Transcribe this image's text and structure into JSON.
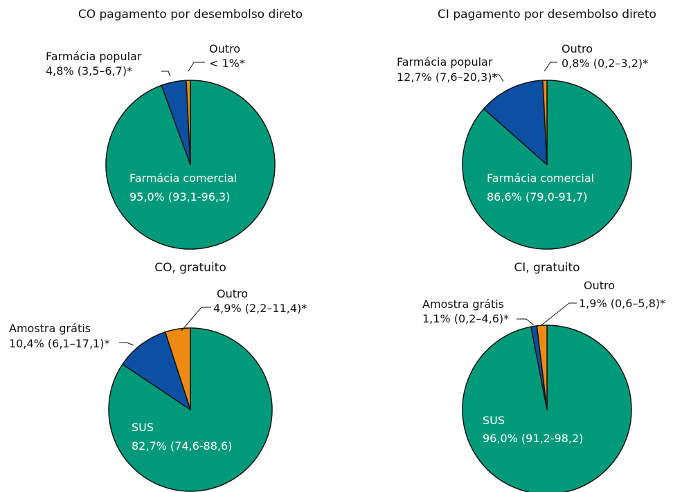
{
  "colors": {
    "teal": "#009a7a",
    "blue": "#0c4fa3",
    "orange": "#ee8a12",
    "stroke": "#111111"
  },
  "chart_data": [
    {
      "type": "pie",
      "title": "CO pagamento por desembolso direto",
      "slices": [
        {
          "name": "Farmácia comercial",
          "value": 95.0,
          "label": "95,0% (93,1-96,3)",
          "color": "teal"
        },
        {
          "name": "Farmácia popular",
          "value": 4.8,
          "label": "4,8% (3,5–6,7)*",
          "color": "blue"
        },
        {
          "name": "Outro",
          "value": 0.8,
          "label": "< 1%*",
          "color": "orange"
        }
      ]
    },
    {
      "type": "pie",
      "title": "CI pagamento por desembolso direto",
      "slices": [
        {
          "name": "Farmácia comercial",
          "value": 86.6,
          "label": "86,6% (79,0-91,7)",
          "color": "teal"
        },
        {
          "name": "Farmácia popular",
          "value": 12.7,
          "label": "12,7% (7,6–20,3)*",
          "color": "blue"
        },
        {
          "name": "Outro",
          "value": 0.8,
          "label": "0,8% (0,2–3,2)*",
          "color": "orange"
        }
      ]
    },
    {
      "type": "pie",
      "title": "CO, gratuito",
      "slices": [
        {
          "name": "SUS",
          "value": 82.7,
          "label": "82,7% (74,6-88,6)",
          "color": "teal"
        },
        {
          "name": "Amostra grátis",
          "value": 10.4,
          "label": "10,4% (6,1–17,1)*",
          "color": "blue"
        },
        {
          "name": "Outro",
          "value": 4.9,
          "label": "4,9% (2,2–11,4)*",
          "color": "orange"
        }
      ]
    },
    {
      "type": "pie",
      "title": "CI, gratuito",
      "slices": [
        {
          "name": "SUS",
          "value": 96.0,
          "label": "96,0% (91,2-98,2)",
          "color": "teal"
        },
        {
          "name": "Amostra grátis",
          "value": 1.1,
          "label": "1,1% (0,2–4,6)*",
          "color": "blue"
        },
        {
          "name": "Outro",
          "value": 1.9,
          "label": "1,9% (0,6–5,8)*",
          "color": "orange"
        }
      ]
    }
  ]
}
